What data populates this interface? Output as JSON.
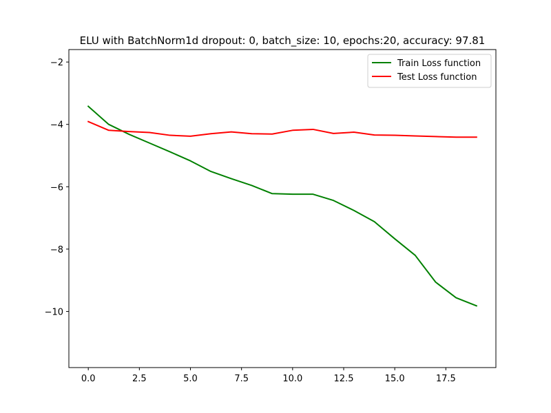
{
  "chart_data": {
    "type": "line",
    "title": "ELU with BatchNorm1d dropout: 0, batch_size: 10, epochs:20, accuracy: 97.81",
    "xlabel": "",
    "ylabel": "",
    "x": [
      0,
      1,
      2,
      3,
      4,
      5,
      6,
      7,
      8,
      9,
      10,
      11,
      12,
      13,
      14,
      15,
      16,
      17,
      18,
      19
    ],
    "xlim": [
      -0.95,
      19.95
    ],
    "ylim": [
      -11.8,
      -1.6
    ],
    "x_ticks": [
      0,
      2.5,
      5,
      7.5,
      10,
      12.5,
      15,
      17.5
    ],
    "x_tick_labels": [
      "0.0",
      "2.5",
      "5.0",
      "7.5",
      "10.0",
      "12.5",
      "15.0",
      "17.5"
    ],
    "y_ticks": [
      -10,
      -8,
      -6,
      -4,
      -2
    ],
    "y_tick_labels": [
      "−10",
      "−8",
      "−6",
      "−4",
      "−2"
    ],
    "grid": false,
    "legend_position": "top-right",
    "series": [
      {
        "name": "Train Loss function",
        "color": "#008000",
        "values": [
          -3.42,
          -4.0,
          -4.32,
          -4.6,
          -4.88,
          -5.17,
          -5.51,
          -5.74,
          -5.96,
          -6.22,
          -6.24,
          -6.24,
          -6.44,
          -6.76,
          -7.12,
          -7.67,
          -8.2,
          -9.06,
          -9.56,
          -9.82
        ]
      },
      {
        "name": "Test Loss function",
        "color": "#ff0000",
        "values": [
          -3.91,
          -4.19,
          -4.23,
          -4.26,
          -4.35,
          -4.38,
          -4.3,
          -4.24,
          -4.3,
          -4.31,
          -4.19,
          -4.16,
          -4.29,
          -4.25,
          -4.34,
          -4.35,
          -4.37,
          -4.39,
          -4.41,
          -4.41
        ]
      }
    ]
  }
}
